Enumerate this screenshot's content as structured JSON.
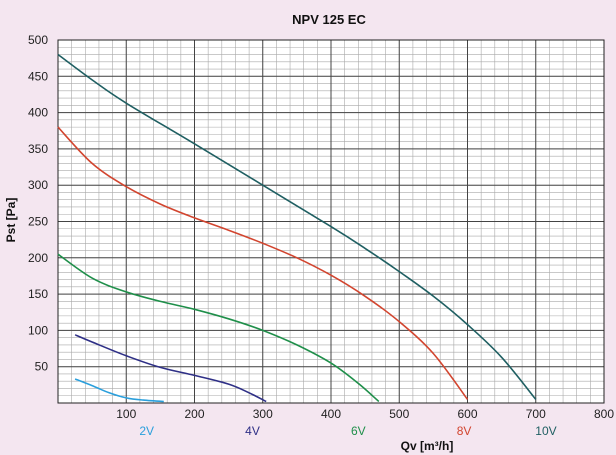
{
  "chart_data": {
    "type": "line",
    "title": "NPV 125 EC",
    "xlabel": "Qv [m³/h]",
    "ylabel": "Pst [Pa]",
    "xlim": [
      0,
      800
    ],
    "ylim": [
      0,
      500
    ],
    "xticks": [
      "100",
      "200",
      "300",
      "400",
      "500",
      "600",
      "700",
      "800"
    ],
    "yticks": [
      "50",
      "100",
      "150",
      "200",
      "250",
      "300",
      "350",
      "400",
      "450",
      "500"
    ],
    "grid": true,
    "minor_grid": true,
    "series": [
      {
        "name": "2V",
        "color": "#2a9fdc",
        "label_x": 130,
        "points": [
          [
            25,
            33
          ],
          [
            50,
            24
          ],
          [
            75,
            14
          ],
          [
            100,
            7
          ],
          [
            125,
            4
          ],
          [
            155,
            2
          ]
        ]
      },
      {
        "name": "4V",
        "color": "#2e2f86",
        "label_x": 285,
        "points": [
          [
            25,
            94
          ],
          [
            50,
            84
          ],
          [
            100,
            65
          ],
          [
            150,
            49
          ],
          [
            200,
            38
          ],
          [
            250,
            26
          ],
          [
            280,
            14
          ],
          [
            305,
            2
          ]
        ]
      },
      {
        "name": "6V",
        "color": "#1f8f4a",
        "label_x": 440,
        "points": [
          [
            0,
            205
          ],
          [
            50,
            172
          ],
          [
            100,
            153
          ],
          [
            150,
            140
          ],
          [
            200,
            129
          ],
          [
            250,
            116
          ],
          [
            300,
            100
          ],
          [
            350,
            80
          ],
          [
            400,
            55
          ],
          [
            440,
            27
          ],
          [
            470,
            2
          ]
        ]
      },
      {
        "name": "8V",
        "color": "#d2452f",
        "label_x": 595,
        "points": [
          [
            0,
            380
          ],
          [
            50,
            330
          ],
          [
            100,
            298
          ],
          [
            150,
            274
          ],
          [
            200,
            255
          ],
          [
            250,
            238
          ],
          [
            300,
            220
          ],
          [
            350,
            200
          ],
          [
            400,
            176
          ],
          [
            450,
            147
          ],
          [
            500,
            112
          ],
          [
            550,
            68
          ],
          [
            600,
            5
          ]
        ]
      },
      {
        "name": "10V",
        "color": "#1f5f62",
        "label_x": 715,
        "points": [
          [
            0,
            480
          ],
          [
            50,
            445
          ],
          [
            100,
            413
          ],
          [
            200,
            357
          ],
          [
            300,
            300
          ],
          [
            400,
            243
          ],
          [
            450,
            213
          ],
          [
            500,
            181
          ],
          [
            550,
            147
          ],
          [
            600,
            108
          ],
          [
            650,
            63
          ],
          [
            700,
            5
          ]
        ]
      }
    ]
  }
}
